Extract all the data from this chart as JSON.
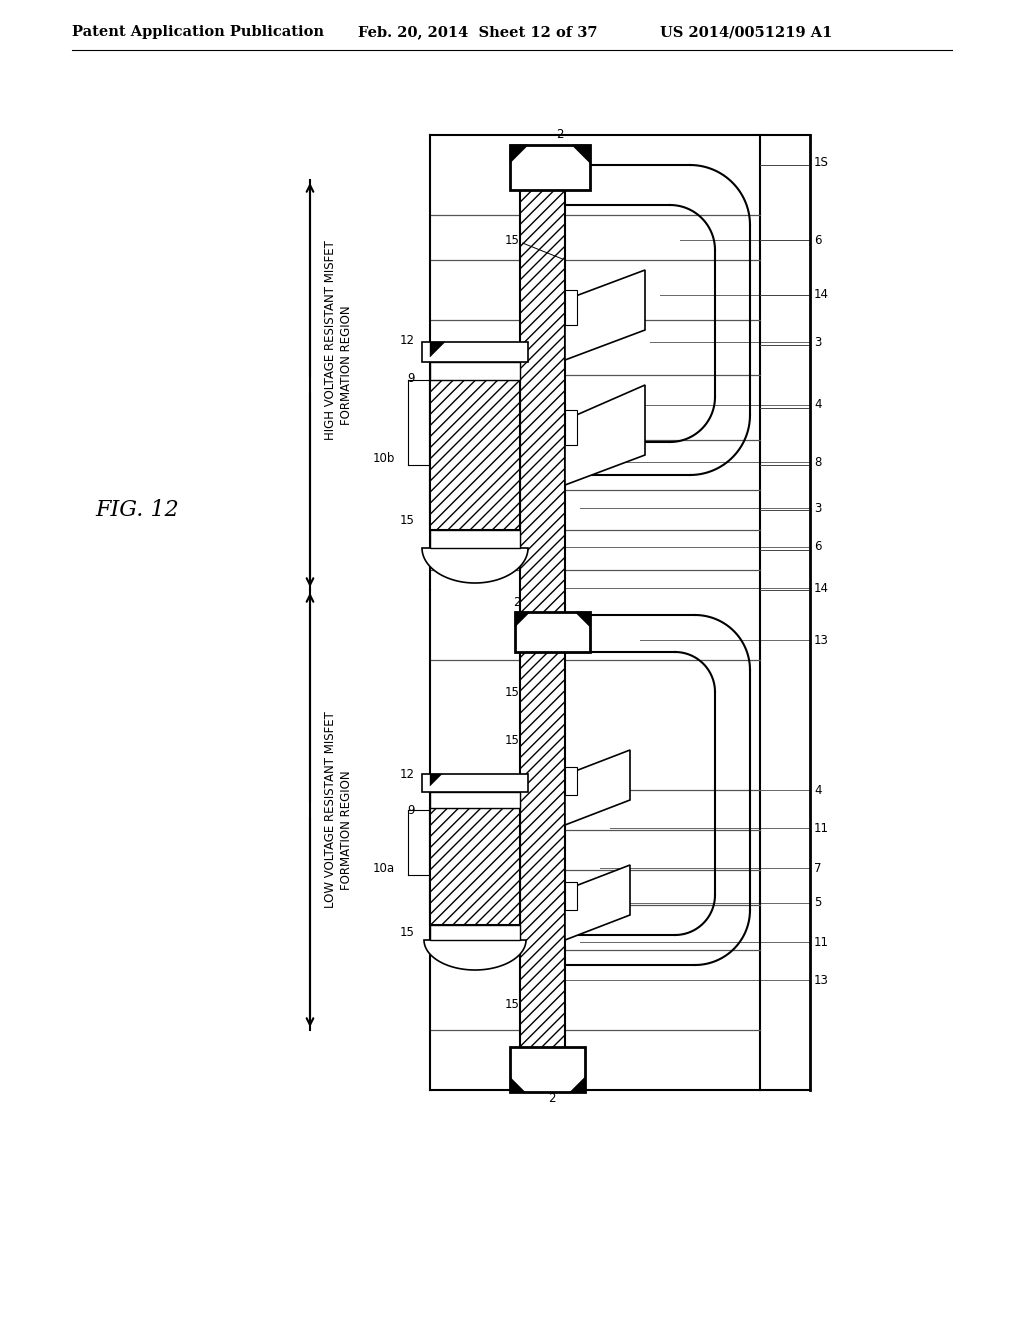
{
  "header_left": "Patent Application Publication",
  "header_center": "Feb. 20, 2014  Sheet 12 of 37",
  "header_right": "US 2014/0051219 A1",
  "fig_label": "FIG. 12",
  "high_voltage_label_1": "HIGH VOLTAGE RESISTANT MISFET",
  "high_voltage_label_2": "FORMATION REGION",
  "low_voltage_label_1": "LOW VOLTAGE RESISTANT MISFET",
  "low_voltage_label_2": "FORMATION REGION",
  "bg_color": "#ffffff",
  "line_color": "#000000"
}
